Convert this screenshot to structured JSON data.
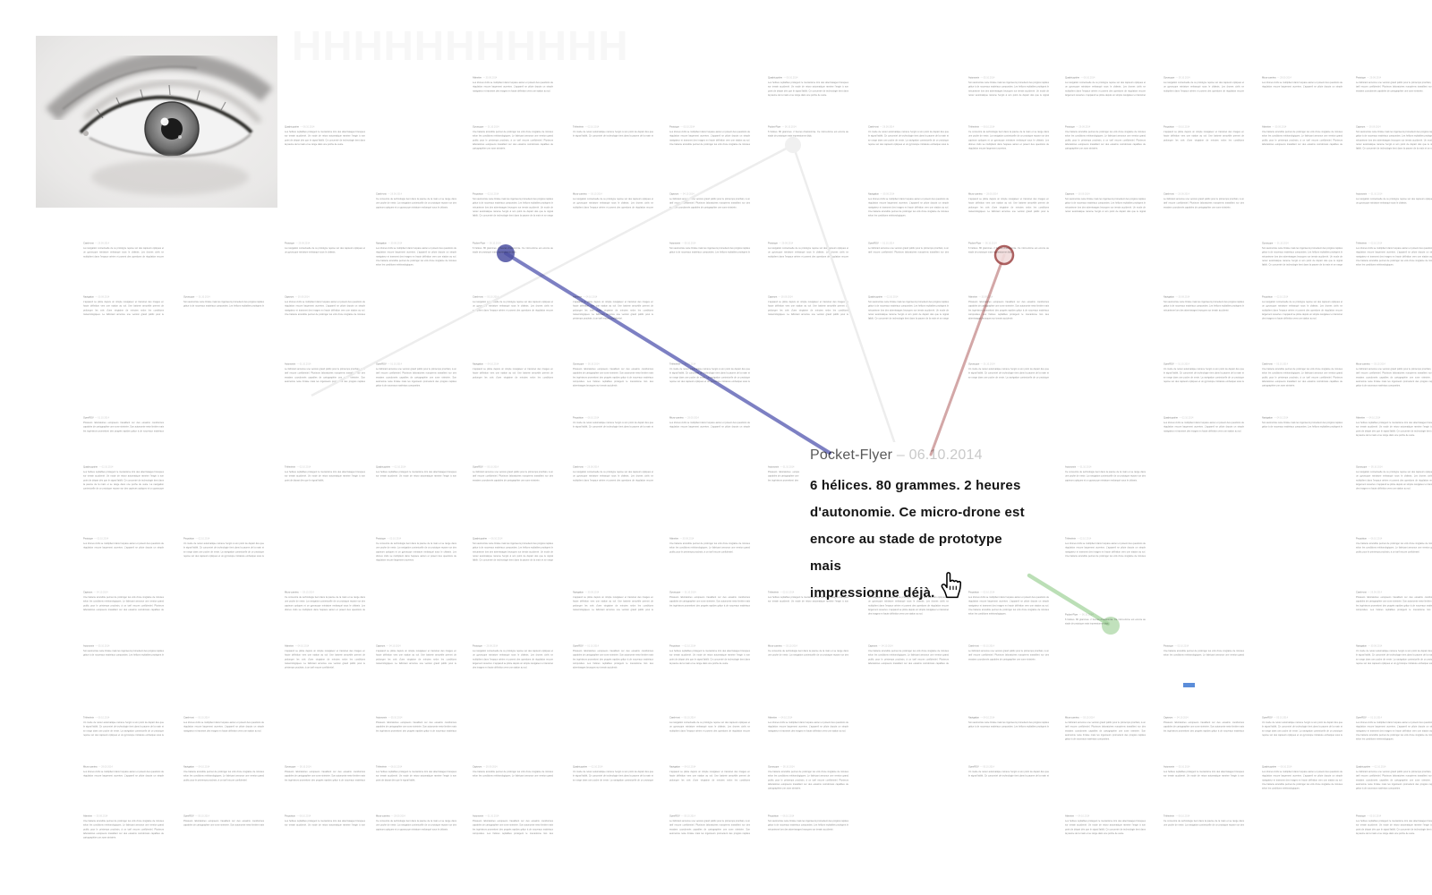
{
  "app": {
    "background": "#ffffff"
  },
  "ghost_wordmark": "HHHHHHHHHHH",
  "article": {
    "title": "Pocket-Flyer",
    "date": "– 06.10.2014",
    "lines": [
      "6 hélices. 80 grammes. 2 heures",
      "d'autonomie. Ce micro-drone est",
      "encore au stade de prototype mais",
      "impressionne déjà."
    ]
  },
  "micro": {
    "pocket_flyer": {
      "title": "Pocket-Flyer",
      "date": "06.10.2014",
      "body": "6 hélices. 80 grammes. 2 heures d'autonomie. Ce micro-drone est encore au stade de prototype mais impressionne déjà."
    },
    "titles": [
      "Crash-test",
      "Navigation",
      "OpenROV",
      "Quadricoptère",
      "Prototype",
      "Capteurs",
      "Autonomie",
      "Télémétrie",
      "Micro-caméra",
      "Altimètre",
      "Gyroscope",
      "Propulsion"
    ],
    "dates": [
      "29.09.2014",
      "30.09.2014",
      "01.10.2014",
      "02.10.2014",
      "03.10.2014",
      "04.10.2014",
      "05.10.2014",
      "06.10.2014"
    ],
    "sentences": [
      "La navigation contextuelle de ce prototype repose sur des capteurs optiques et un gyroscope miniature embarqué sous le châssis.",
      "Les drones civils se multiplient dans l'espace aérien et posent des questions de régulation encore largement ouvertes.",
      "L'appareil se pilote depuis un simple navigateur et transmet des images en haute définition vers une station au sol.",
      "Une batterie amovible permet de prolonger les vols d'une vingtaine de minutes selon les conditions météorologiques.",
      "Le fabricant annonce une version grand public pour le printemps prochain, à un tarif encore confidentiel.",
      "Plusieurs laboratoires européens travaillent sur des essaims coordonnés capables de cartographier une zone sinistrée.",
      "Son autonomie reste limitée mais les ingénieurs promettent des progrès rapides grâce à de nouveaux matériaux composites.",
      "Les hélices repliables protègent le mécanisme lors des atterrissages brusques sur terrain accidenté.",
      "Un mode de retour automatique ramène l'engin à son point de départ dès que le signal faiblit.",
      "Ce concentré de technologie tient dans la paume de la main et se range dans une poche de veste."
    ]
  },
  "markers": {
    "blue": {
      "fill": "#4c50a2",
      "line": "#5d61b4"
    },
    "red": {
      "stroke": "#a34f4f",
      "fill": "#f1dcdc",
      "line": "#c99191"
    },
    "green": {
      "fill": "#a6d4a0",
      "line": "#b4dcae"
    },
    "grey": {
      "fill": "#f0f0f0",
      "line": "#ededed"
    },
    "chip": "#5b8dd9"
  }
}
